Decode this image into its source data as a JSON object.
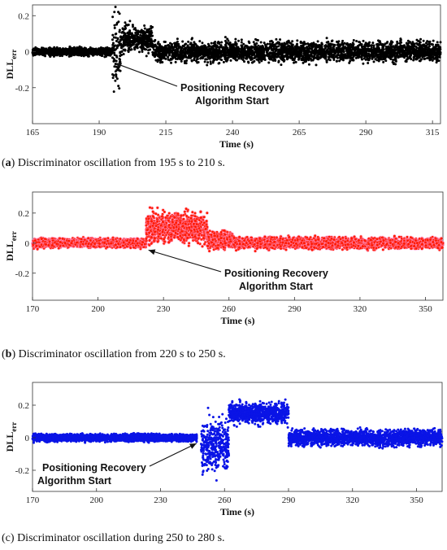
{
  "chart_data": [
    {
      "type": "scatter",
      "caption_label": "a",
      "caption_text": "Discriminator oscillation from 195 s to 210 s.",
      "xlabel": "Time (s)",
      "ylabel": "DLL",
      "ylabel_sub": "err",
      "xlim": [
        165,
        318
      ],
      "ylim": [
        -0.4,
        0.26
      ],
      "xticks": [
        165,
        190,
        215,
        240,
        265,
        290,
        315
      ],
      "yticks": [
        -0.2,
        0,
        0.2
      ],
      "color": "#000000",
      "annotation": {
        "line1": "Positioning Recovery",
        "line2": "Algorithm Start",
        "x": 195,
        "y": -0.05
      },
      "series": [
        {
          "x_from": 165,
          "x_to": 195,
          "y_center": 0.0,
          "y_spread": 0.035
        },
        {
          "x_from": 195,
          "x_to": 198,
          "y_center": 0.0,
          "y_spread": 0.35
        },
        {
          "x_from": 198,
          "x_to": 210,
          "y_center": 0.07,
          "y_spread": 0.12
        },
        {
          "x_from": 210,
          "x_to": 318,
          "y_center": 0.0,
          "y_spread": 0.09
        }
      ]
    },
    {
      "type": "scatter",
      "caption_label": "b",
      "caption_text": "Discriminator oscillation from 220 s to 250 s.",
      "xlabel": "Time (s)",
      "ylabel": "DLL",
      "ylabel_sub": "err",
      "xlim": [
        170,
        358
      ],
      "ylim": [
        -0.38,
        0.34
      ],
      "xticks": [
        170,
        200,
        230,
        260,
        290,
        320,
        350
      ],
      "yticks": [
        -0.2,
        0,
        0.2
      ],
      "color": "#ff1a00",
      "annotation": {
        "line1": "Positioning Recovery",
        "line2": "Algorithm Start",
        "x": 222,
        "y": -0.03
      },
      "series": [
        {
          "x_from": 170,
          "x_to": 222,
          "y_center": 0.0,
          "y_spread": 0.045
        },
        {
          "x_from": 222,
          "x_to": 250,
          "y_center": 0.1,
          "y_spread": 0.17
        },
        {
          "x_from": 250,
          "x_to": 262,
          "y_center": 0.02,
          "y_spread": 0.1
        },
        {
          "x_from": 262,
          "x_to": 358,
          "y_center": 0.0,
          "y_spread": 0.06
        }
      ]
    },
    {
      "type": "scatter",
      "caption_label": "c",
      "caption_text": "Discriminator oscillation during 250 to 280 s.",
      "xlabel": "Time (s)",
      "ylabel": "DLL",
      "ylabel_sub": "err",
      "xlim": [
        170,
        362
      ],
      "ylim": [
        -0.33,
        0.34
      ],
      "xticks": [
        170,
        200,
        230,
        260,
        290,
        320,
        350
      ],
      "yticks": [
        -0.2,
        0,
        0.2
      ],
      "color": "#0a14e6",
      "annotation": {
        "line1": "Positioning Recovery",
        "line2": "Algorithm Start",
        "x": 248,
        "y": -0.02
      },
      "series": [
        {
          "x_from": 170,
          "x_to": 247,
          "y_center": 0.0,
          "y_spread": 0.035
        },
        {
          "x_from": 249,
          "x_to": 262,
          "y_center": -0.05,
          "y_spread": 0.28
        },
        {
          "x_from": 262,
          "x_to": 290,
          "y_center": 0.15,
          "y_spread": 0.1
        },
        {
          "x_from": 290,
          "x_to": 362,
          "y_center": 0.0,
          "y_spread": 0.08
        }
      ]
    }
  ]
}
